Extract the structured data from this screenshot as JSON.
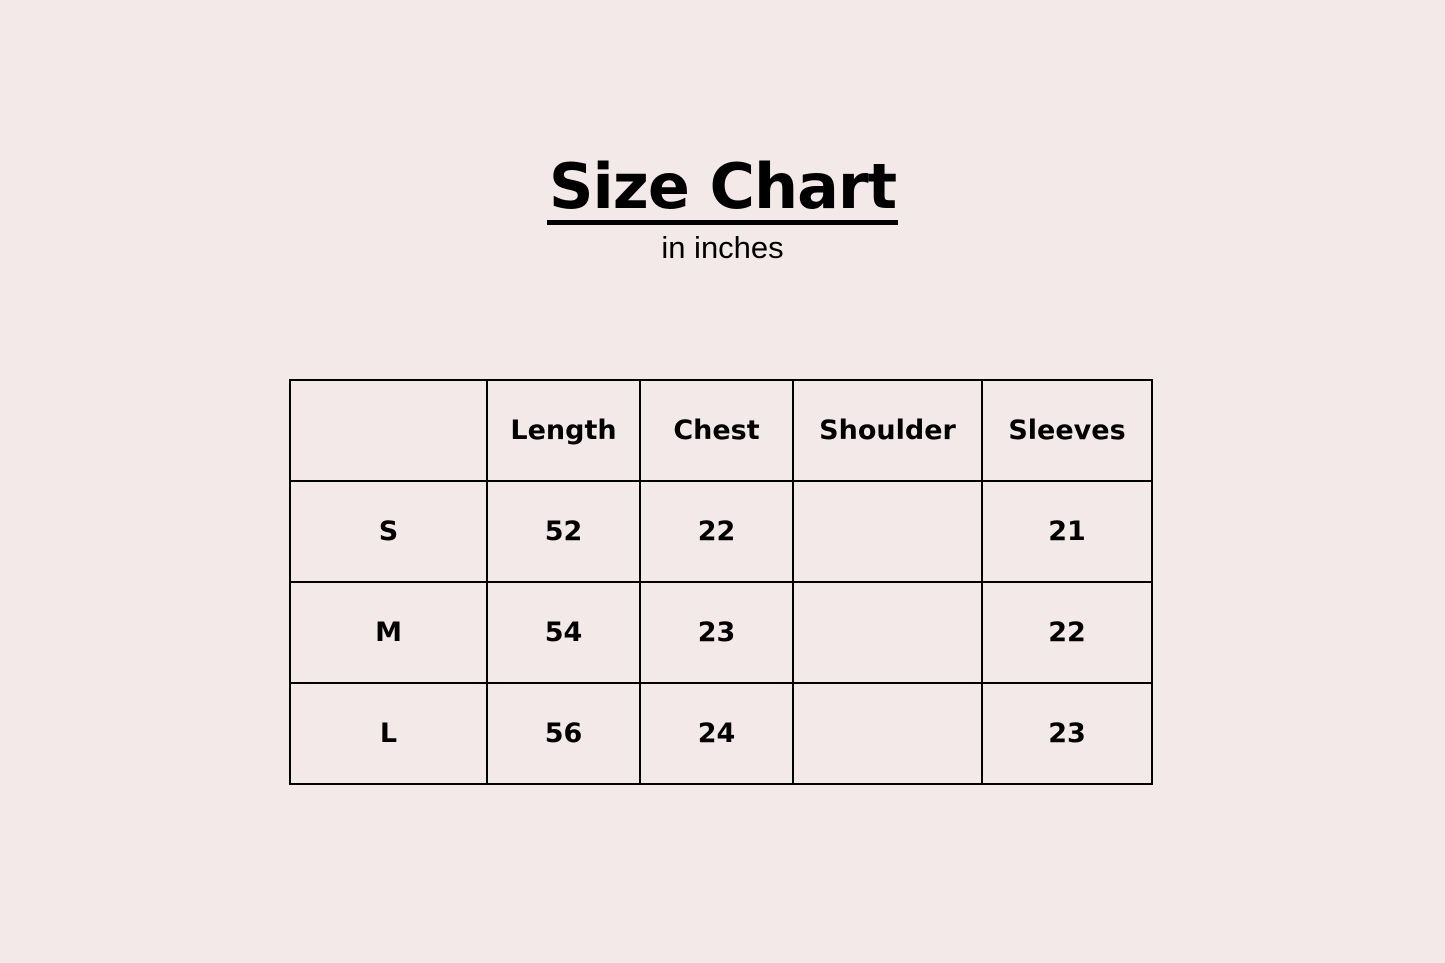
{
  "title": "Size Chart",
  "subtitle": "in inches",
  "table": {
    "headers": [
      "",
      "Length",
      "Chest",
      "Shoulder",
      "Sleeves"
    ],
    "rows": [
      [
        "S",
        "52",
        "22",
        "",
        "21"
      ],
      [
        "M",
        "54",
        "23",
        "",
        "22"
      ],
      [
        "L",
        "56",
        "24",
        "",
        "23"
      ]
    ]
  },
  "colors": {
    "background": "#f3e9e8",
    "text": "#000000"
  }
}
